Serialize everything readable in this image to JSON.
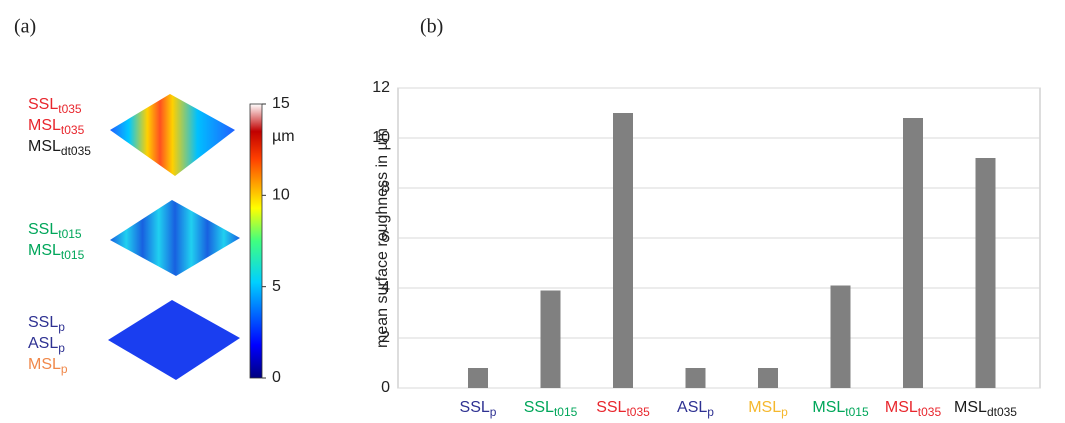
{
  "panel_a": {
    "label": "(a)",
    "groups": [
      [
        {
          "text": "SSL",
          "sub": "t035",
          "color": "#e8262d"
        },
        {
          "text": "MSL",
          "sub": "t035",
          "color": "#e8262d"
        },
        {
          "text": "MSL",
          "sub": "dt035",
          "color": "#1a1a1a"
        }
      ],
      [
        {
          "text": "SSL",
          "sub": "t015",
          "color": "#00a65a"
        },
        {
          "text": "MSL",
          "sub": "t015",
          "color": "#00a65a"
        }
      ],
      [
        {
          "text": "SSL",
          "sub": "p",
          "color": "#2e3192"
        },
        {
          "text": "ASL",
          "sub": "p",
          "color": "#2e3192"
        },
        {
          "text": "MSL",
          "sub": "p",
          "color": "#f0884a"
        }
      ]
    ],
    "colorbar": {
      "lim": [
        0,
        15
      ],
      "ticks": [
        0,
        5,
        10,
        15
      ],
      "unit": "µm"
    }
  },
  "chart_data": {
    "type": "bar",
    "panel_label": "(b)",
    "y_label": "mean surface roughness in µm",
    "categories": [
      {
        "text": "SSL",
        "sub": "p",
        "color": "#2e3192"
      },
      {
        "text": "SSL",
        "sub": "t015",
        "color": "#00a65a"
      },
      {
        "text": "SSL",
        "sub": "t035",
        "color": "#e8262d"
      },
      {
        "text": "ASL",
        "sub": "p",
        "color": "#2e3192"
      },
      {
        "text": "MSL",
        "sub": "p",
        "color": "#f5b82e"
      },
      {
        "text": "MSL",
        "sub": "t015",
        "color": "#00a65a"
      },
      {
        "text": "MSL",
        "sub": "t035",
        "color": "#e8262d"
      },
      {
        "text": "MSL",
        "sub": "dt035",
        "color": "#1a1a1a"
      }
    ],
    "values": [
      0.8,
      3.9,
      11.0,
      0.8,
      0.8,
      4.1,
      10.8,
      9.2
    ],
    "color": "#808080",
    "ylim": [
      0,
      12
    ],
    "yticks": [
      0,
      2,
      4,
      6,
      8,
      10,
      12
    ],
    "grid": true
  }
}
